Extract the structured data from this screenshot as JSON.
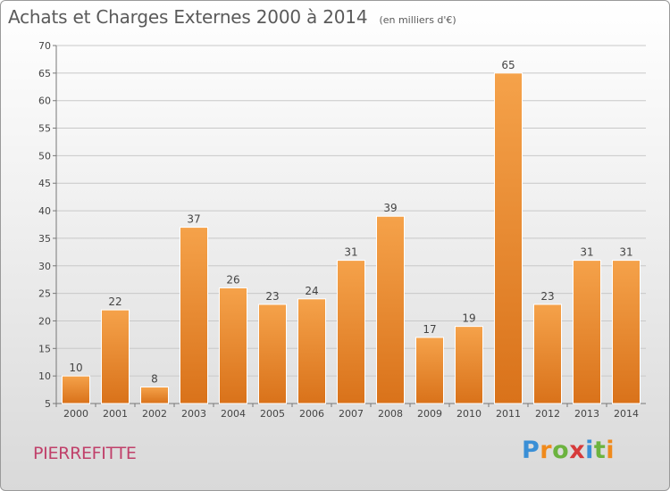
{
  "header": {
    "title": "Achats et Charges Externes 2000 à 2014",
    "subtitle": "(en milliers d'€)"
  },
  "footer": {
    "place": "PIERREFITTE",
    "logo_text": "Proxiti",
    "logo_letters": [
      "P",
      "r",
      "o",
      "x",
      "i",
      "t",
      "i"
    ],
    "logo_colors": [
      "#3a8fd6",
      "#f08a1c",
      "#6cb33f",
      "#d63a3a",
      "#3a8fd6",
      "#6cb33f",
      "#f08a1c"
    ]
  },
  "chart_data": {
    "type": "bar",
    "title": "Achats et Charges Externes 2000 à 2014",
    "subtitle": "(en milliers d'€)",
    "categories": [
      "2000",
      "2001",
      "2002",
      "2003",
      "2004",
      "2005",
      "2006",
      "2007",
      "2008",
      "2009",
      "2010",
      "2011",
      "2012",
      "2013",
      "2014"
    ],
    "values": [
      10,
      22,
      8,
      37,
      26,
      23,
      24,
      31,
      39,
      17,
      19,
      65,
      23,
      31,
      31
    ],
    "ylim": [
      5,
      70
    ],
    "yticks": [
      5,
      10,
      15,
      20,
      25,
      30,
      35,
      40,
      45,
      50,
      55,
      60,
      65,
      70
    ],
    "grid": true,
    "bar_color": "#f0922e",
    "bar_color_dark": "#d9721a"
  }
}
